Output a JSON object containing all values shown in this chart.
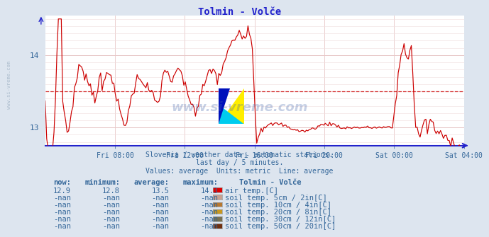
{
  "title": "Tolmin - Volče",
  "bg_color": "#dde5ef",
  "plot_bg_color": "#ffffff",
  "line_color": "#cc0000",
  "avg_line_color": "#cc0000",
  "grid_color_h": "#e8c8c8",
  "grid_color_v": "#e8c8c8",
  "axis_color": "#2222cc",
  "ylim": [
    12.75,
    14.55
  ],
  "yticks": [
    13.0,
    14.0
  ],
  "avg_value": 13.5,
  "subtitle1": "Slovenia / weather data - automatic stations.",
  "subtitle2": "last day / 5 minutes.",
  "subtitle3": "Values: average  Units: metric  Line: average",
  "text_color": "#336699",
  "xtick_labels": [
    "Fri 08:00",
    "Fri 12:00",
    "Fri 16:00",
    "Fri 20:00",
    "Sat 00:00",
    "Sat 04:00"
  ],
  "xtick_fracs": [
    0.1666,
    0.3333,
    0.5,
    0.6666,
    0.8333,
    1.0
  ],
  "legend_title": "Tolmin - Volče",
  "legend_items": [
    {
      "label": "air temp.[C]",
      "color": "#dd0000"
    },
    {
      "label": "soil temp. 5cm / 2in[C]",
      "color": "#c8a090"
    },
    {
      "label": "soil temp. 10cm / 4in[C]",
      "color": "#b87830"
    },
    {
      "label": "soil temp. 20cm / 8in[C]",
      "color": "#c89820"
    },
    {
      "label": "soil temp. 30cm / 12in[C]",
      "color": "#787050"
    },
    {
      "label": "soil temp. 50cm / 20in[C]",
      "color": "#703010"
    }
  ],
  "table_headers": [
    "now:",
    "minimum:",
    "average:",
    "maximum:"
  ],
  "table_rows": [
    [
      "12.9",
      "12.8",
      "13.5",
      "14.3"
    ],
    [
      "-nan",
      "-nan",
      "-nan",
      "-nan"
    ],
    [
      "-nan",
      "-nan",
      "-nan",
      "-nan"
    ],
    [
      "-nan",
      "-nan",
      "-nan",
      "-nan"
    ],
    [
      "-nan",
      "-nan",
      "-nan",
      "-nan"
    ],
    [
      "-nan",
      "-nan",
      "-nan",
      "-nan"
    ]
  ]
}
